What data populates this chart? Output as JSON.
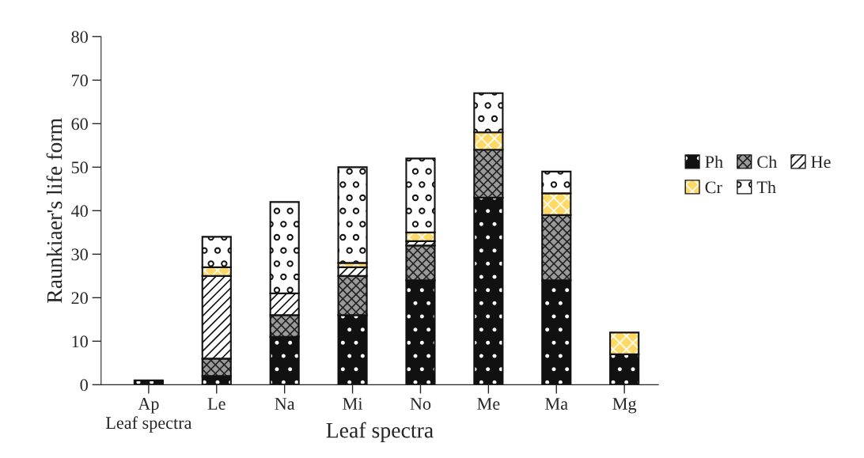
{
  "chart_data": {
    "type": "bar",
    "stacked": true,
    "xlabel": "Leaf spectra",
    "ylabel": "Raunkiaer's life form",
    "categories": [
      "Ap",
      "Le",
      "Na",
      "Mi",
      "No",
      "Me",
      "Ma",
      "Mg"
    ],
    "series": [
      {
        "name": "Ph",
        "color": "#111111",
        "values": [
          1,
          2,
          11,
          16,
          24,
          43,
          24,
          7
        ]
      },
      {
        "name": "Ch",
        "color": "#9a9a9a",
        "values": [
          null,
          4,
          5,
          9,
          8,
          11,
          15,
          null
        ]
      },
      {
        "name": "He",
        "color": "#ffffff",
        "values": [
          null,
          19,
          5,
          2,
          1,
          null,
          null,
          null
        ]
      },
      {
        "name": "Cr",
        "color": "#ffd966",
        "values": [
          null,
          2,
          null,
          1,
          2,
          4,
          5,
          5
        ]
      },
      {
        "name": "Th",
        "color": "#ffffff",
        "values": [
          null,
          7,
          21,
          22,
          17,
          9,
          5,
          null
        ]
      }
    ],
    "ylim": [
      0,
      80
    ],
    "yticks": [
      0,
      10,
      20,
      30,
      40,
      50,
      60,
      70,
      80
    ],
    "grid": false,
    "legend": "right",
    "annotations": [
      "Leaf spectra"
    ]
  }
}
